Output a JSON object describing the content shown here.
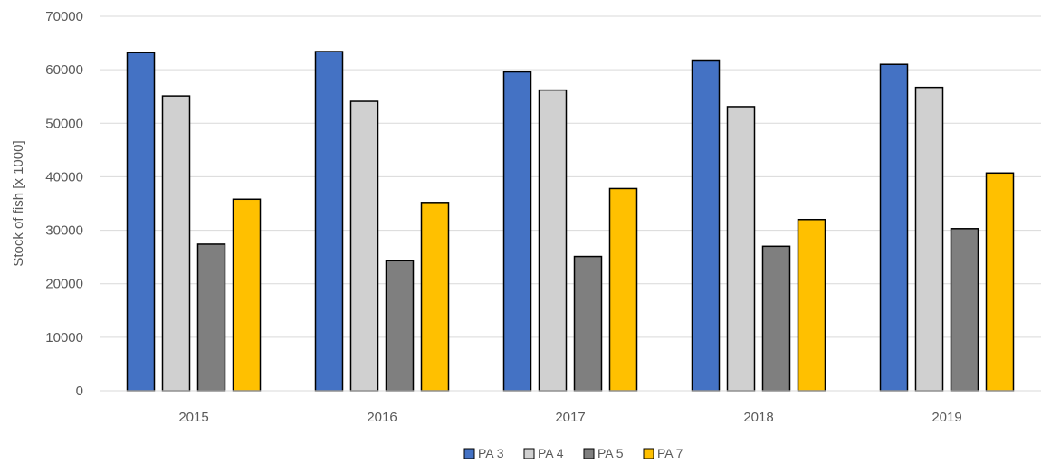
{
  "chart_data": {
    "type": "bar",
    "ylabel": "Stock of fish  [x 1000]",
    "xlabel": "",
    "ylim": [
      0,
      70000
    ],
    "yticks": [
      0,
      10000,
      20000,
      30000,
      40000,
      50000,
      60000,
      70000
    ],
    "grid": true,
    "legend_position": "bottom",
    "categories": [
      "2015",
      "2016",
      "2017",
      "2018",
      "2019"
    ],
    "series": [
      {
        "name": "PA 3",
        "color": "#4472C4",
        "values": [
          63200,
          63400,
          59600,
          61800,
          61000
        ]
      },
      {
        "name": "PA 4",
        "color": "#D0D0D0",
        "values": [
          55100,
          54100,
          56200,
          53100,
          56700
        ]
      },
      {
        "name": "PA 5",
        "color": "#7F7F7F",
        "values": [
          27400,
          24300,
          25100,
          27000,
          30300
        ]
      },
      {
        "name": "PA 7",
        "color": "#FFC000",
        "values": [
          35800,
          35200,
          37800,
          32000,
          40700
        ]
      }
    ]
  }
}
